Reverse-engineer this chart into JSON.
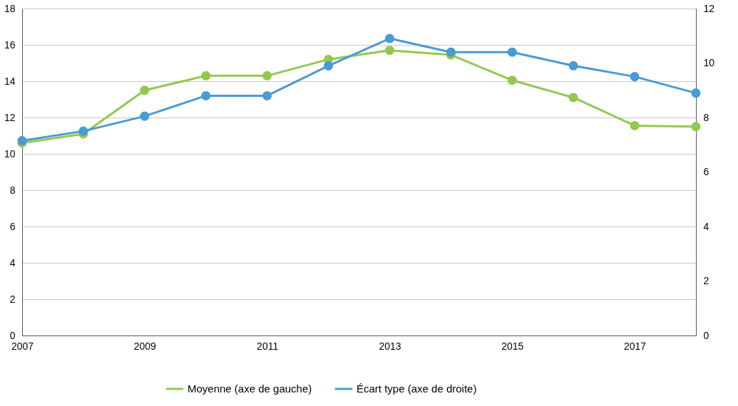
{
  "chart_data": {
    "type": "line",
    "x": [
      2007,
      2008,
      2009,
      2010,
      2011,
      2012,
      2013,
      2014,
      2015,
      2016,
      2017,
      2018
    ],
    "series": [
      {
        "name": "Moyenne (axe de gauche)",
        "color": "#92c84f",
        "values": [
          10.6,
          11.1,
          13.5,
          14.3,
          14.3,
          15.2,
          15.7,
          15.45,
          14.05,
          13.1,
          11.55,
          11.5
        ]
      },
      {
        "name": "Écart type (axe de droite)",
        "color": "#4a9ad4",
        "axis": "y2",
        "values": [
          7.15,
          7.5,
          8.05,
          8.8,
          8.8,
          9.9,
          10.9,
          10.4,
          10.4,
          9.9,
          9.5,
          8.9
        ]
      }
    ],
    "xlim": [
      2007,
      2018
    ],
    "xticks": [
      2007,
      2009,
      2011,
      2013,
      2015,
      2017
    ],
    "ylim": [
      0,
      18
    ],
    "yticks": [
      0,
      2,
      4,
      6,
      8,
      10,
      12,
      14,
      16,
      18
    ],
    "y2lim": [
      0,
      12
    ],
    "y2ticks": [
      0,
      2,
      4,
      6,
      8,
      10,
      12
    ],
    "grid": "y",
    "legend": "bottom",
    "marker": "circle",
    "line_style": "solid"
  }
}
